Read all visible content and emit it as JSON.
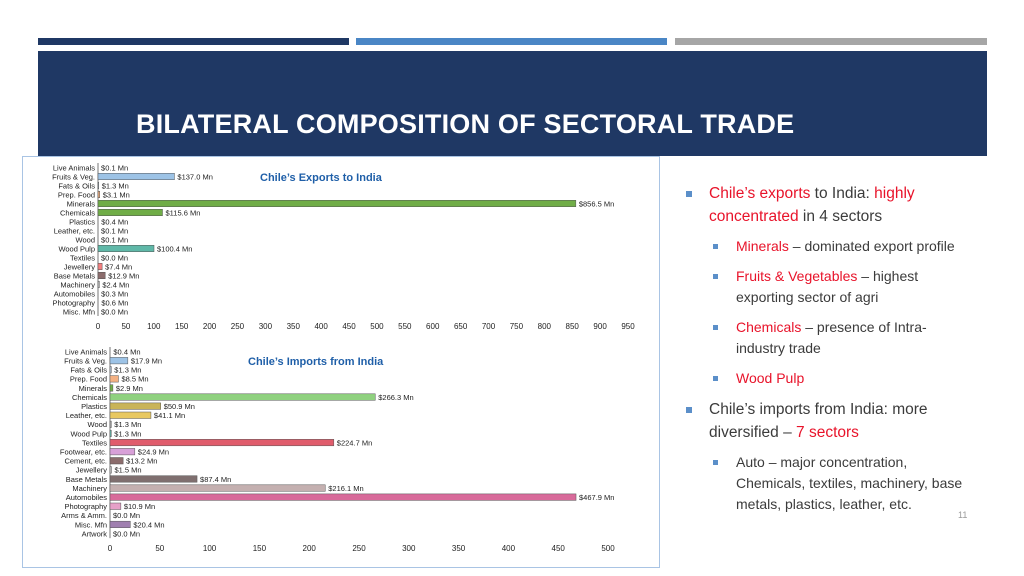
{
  "slide": {
    "title": "BILATERAL COMPOSITION OF SECTORAL TRADE",
    "page_number": "11",
    "colors": {
      "stripe_1": "#1f3864",
      "stripe_2": "#4a86c5",
      "stripe_3": "#a6a6a6",
      "banner": "#1f3864",
      "highlight": "#e8132a",
      "bullet": "#5b8fc9"
    }
  },
  "bullets": {
    "b1": {
      "r1": "Chile’s exports",
      "t1": " to India: ",
      "r2": "highly concentrated",
      "t2": " in 4 sectors"
    },
    "b1a": {
      "r": "Minerals",
      "t": " – dominated export profile"
    },
    "b1b": {
      "r": "Fruits & Vegetables",
      "t": " – highest exporting sector of agri"
    },
    "b1c": {
      "r": "Chemicals",
      "t": " – presence of Intra-industry trade"
    },
    "b1d": {
      "r": "Wood Pulp"
    },
    "b2": {
      "t1": "Chile’s imports from India: more diversified – ",
      "r": "7 sectors"
    },
    "b2a": {
      "t": "Auto – major concentration, Chemicals, textiles, machinery, base metals, plastics, leather, etc."
    }
  },
  "chart_data": [
    {
      "type": "bar",
      "orientation": "horizontal",
      "title": "Chile’s Exports to India",
      "categories": [
        "Live Animals",
        "Fruits & Veg.",
        "Fats & Oils",
        "Prep. Food",
        "Minerals",
        "Chemicals",
        "Plastics",
        "Leather, etc.",
        "Wood",
        "Wood Pulp",
        "Textiles",
        "Jewellery",
        "Base Metals",
        "Machinery",
        "Automobiles",
        "Photography",
        "Misc. Mfn"
      ],
      "values": [
        0.1,
        137.0,
        1.3,
        3.1,
        856.5,
        115.6,
        0.4,
        0.1,
        0.1,
        100.4,
        0.0,
        7.4,
        12.9,
        2.4,
        0.3,
        0.6,
        0.0
      ],
      "data_labels": [
        "$0.1 Mn",
        "$137.0 Mn",
        "$1.3 Mn",
        "$3.1 Mn",
        "$856.5 Mn",
        "$115.6 Mn",
        "$0.4 Mn",
        "$0.1 Mn",
        "$0.1 Mn",
        "$100.4 Mn",
        "$0.0 Mn",
        "$7.4 Mn",
        "$12.9 Mn",
        "$2.4 Mn",
        "$0.3 Mn",
        "$0.6 Mn",
        "$0.0 Mn"
      ],
      "colors": [
        "#8eb4e3",
        "#9dc3e6",
        "#b4c7dc",
        "#f4b183",
        "#70ad47",
        "#70ad47",
        "#c9a0dc",
        "#d9d9d9",
        "#a6a6a6",
        "#5fb8a8",
        "#7f7f7f",
        "#f47f7f",
        "#8c6d6d",
        "#c0c0c0",
        "#bf7fbf",
        "#e6b8e6",
        "#7fb27f"
      ],
      "xticks": [
        0,
        50,
        100,
        150,
        200,
        250,
        300,
        350,
        400,
        450,
        500,
        550,
        600,
        650,
        700,
        750,
        800,
        850,
        900,
        950
      ],
      "xlim": [
        0,
        950
      ],
      "grid": false
    },
    {
      "type": "bar",
      "orientation": "horizontal",
      "title": "Chile’s Imports from India",
      "categories": [
        "Live Animals",
        "Fruits & Veg.",
        "Fats & Oils",
        "Prep. Food",
        "Minerals",
        "Chemicals",
        "Plastics",
        "Leather, etc.",
        "Wood",
        "Wood Pulp",
        "Textiles",
        "Footwear, etc.",
        "Cement, etc.",
        "Jewellery",
        "Base Metals",
        "Machinery",
        "Automobiles",
        "Photography",
        "Arms & Amm.",
        "Misc. Mfn",
        "Artwork"
      ],
      "values": [
        0.4,
        17.9,
        1.3,
        8.5,
        2.9,
        266.3,
        50.9,
        41.1,
        1.3,
        1.3,
        224.7,
        24.9,
        13.2,
        1.5,
        87.4,
        216.1,
        467.9,
        10.9,
        0.0,
        20.4,
        0.0
      ],
      "data_labels": [
        "$0.4 Mn",
        "$17.9 Mn",
        "$1.3 Mn",
        "$8.5 Mn",
        "$2.9 Mn",
        "$266.3 Mn",
        "$50.9 Mn",
        "$41.1 Mn",
        "$1.3 Mn",
        "$1.3 Mn",
        "$224.7 Mn",
        "$24.9 Mn",
        "$13.2 Mn",
        "$1.5 Mn",
        "$87.4 Mn",
        "$216.1 Mn",
        "$467.9 Mn",
        "$10.9 Mn",
        "$0.0 Mn",
        "$20.4 Mn",
        "$0.0 Mn"
      ],
      "colors": [
        "#8eb4e3",
        "#9dc3e6",
        "#b4c7dc",
        "#f4b183",
        "#70ad47",
        "#8fd17f",
        "#c9b458",
        "#e8c860",
        "#a6a6a6",
        "#5fb8a8",
        "#e05c6c",
        "#d8a0d8",
        "#8c6d6d",
        "#d0d0d0",
        "#7f6f6f",
        "#c4b0b0",
        "#d86a9a",
        "#e6a0c8",
        "#b0b0b0",
        "#a07fb0",
        "#9f9fcf"
      ],
      "xticks": [
        0,
        50,
        100,
        150,
        200,
        250,
        300,
        350,
        400,
        450,
        500
      ],
      "xlim": [
        0,
        500
      ],
      "grid": false
    }
  ]
}
